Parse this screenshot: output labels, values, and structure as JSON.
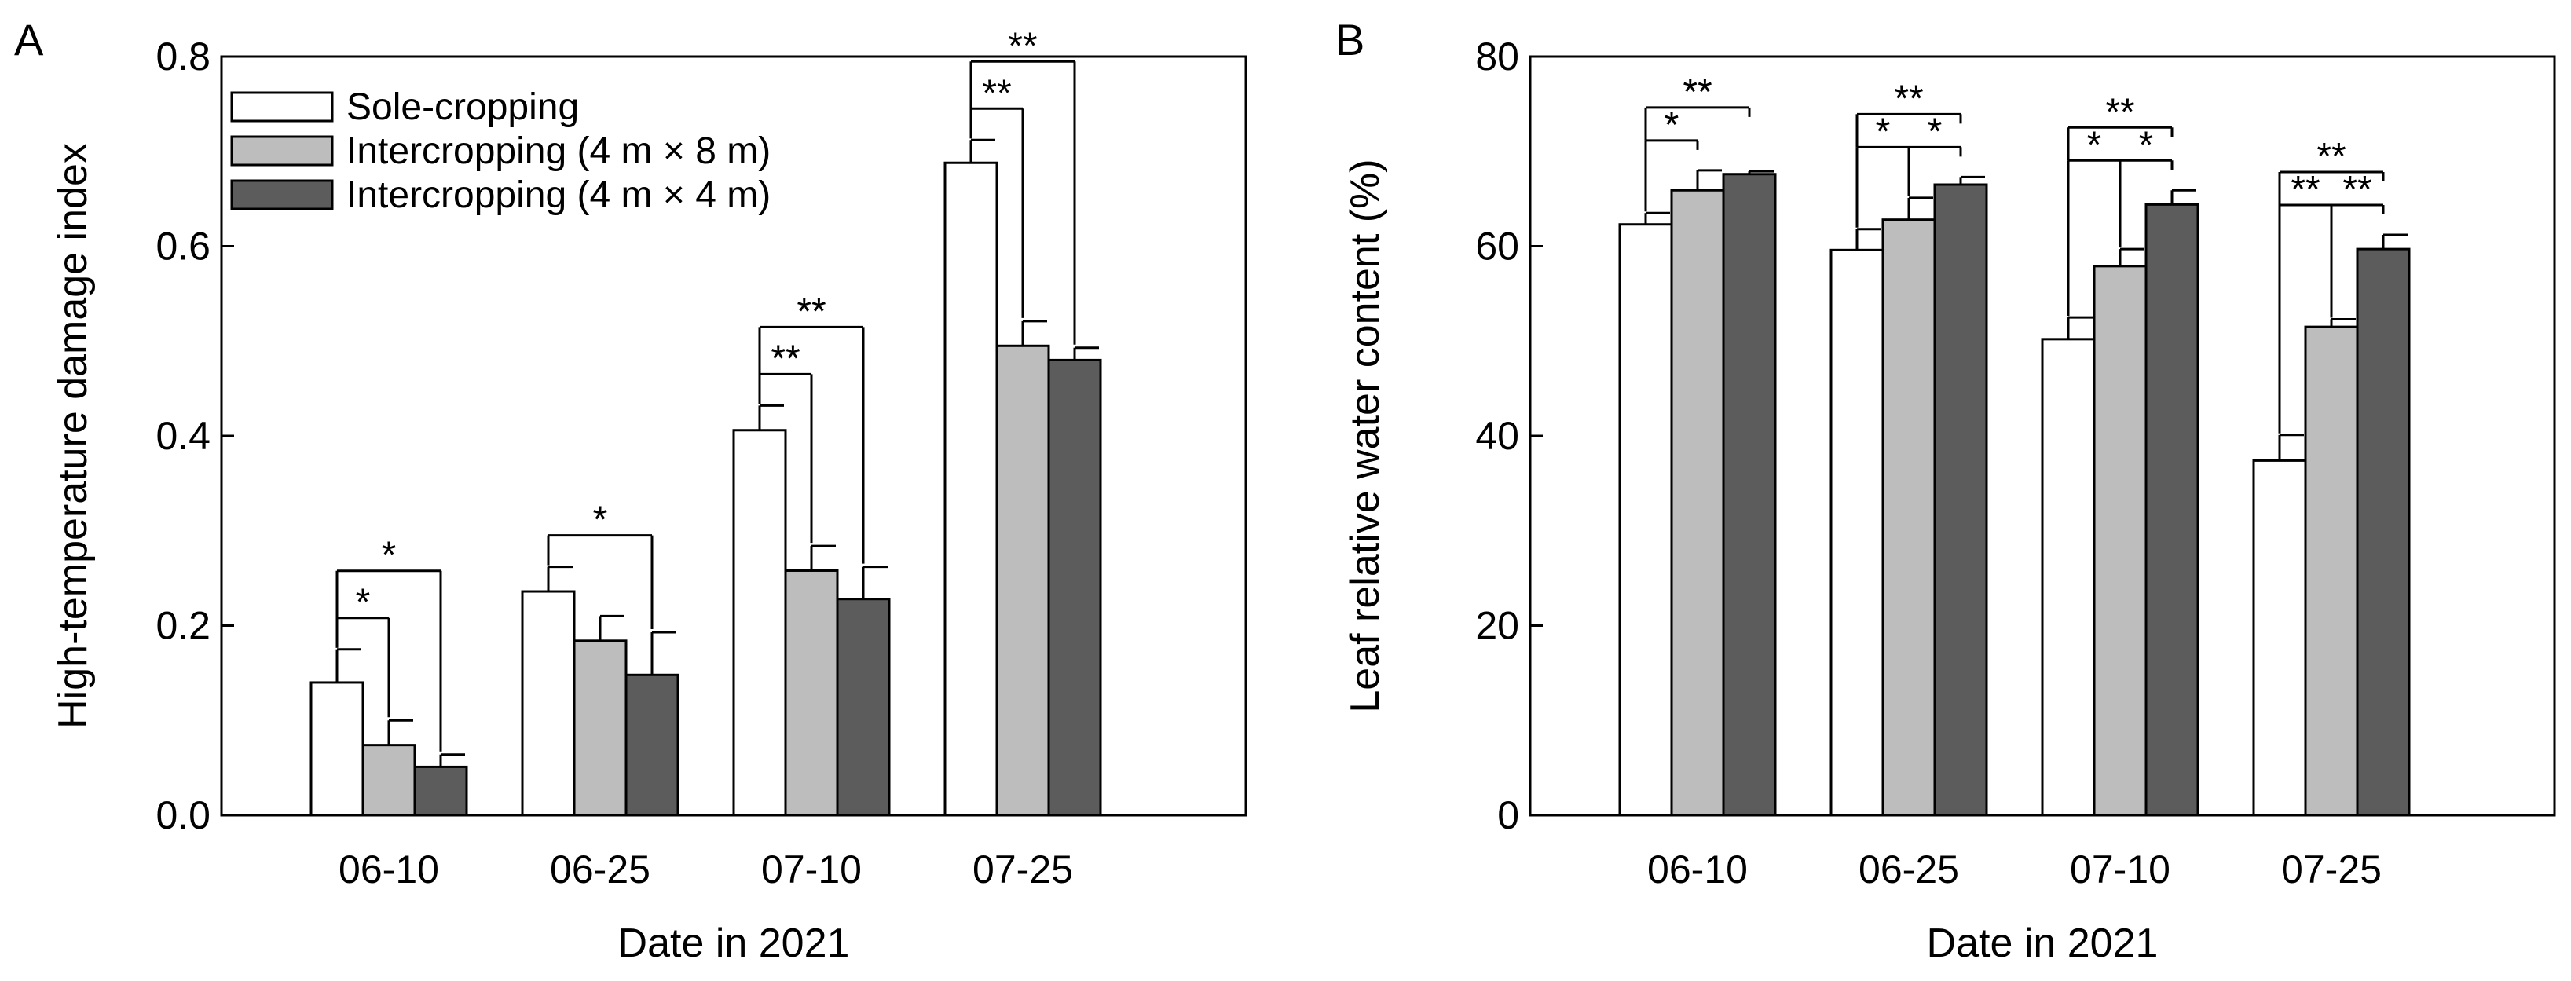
{
  "chart_data": [
    {
      "type": "bar",
      "panel": "A",
      "ylabel": "High-temperature damage index",
      "xlabel": "Date in 2021",
      "ylim": [
        0,
        0.8
      ],
      "yticks": [
        0,
        0.2,
        0.4,
        0.6,
        0.8
      ],
      "ytick_labels": [
        "0.0",
        "0.2",
        "0.4",
        "0.6",
        "0.8"
      ],
      "categories": [
        "06-10",
        "06-25",
        "07-10",
        "07-25"
      ],
      "legend_position": "top-left",
      "series": [
        {
          "name": "Sole-cropping",
          "color": "#ffffff",
          "values": [
            0.14,
            0.236,
            0.406,
            0.688
          ],
          "errors": [
            0.035,
            0.026,
            0.026,
            0.024
          ]
        },
        {
          "name": "Intercropping (4 m × 8 m)",
          "color": "#bdbdbd",
          "values": [
            0.074,
            0.184,
            0.258,
            0.495
          ],
          "errors": [
            0.026,
            0.026,
            0.026,
            0.026
          ]
        },
        {
          "name": "Intercropping (4 m × 4 m)",
          "color": "#5c5c5c",
          "values": [
            0.051,
            0.148,
            0.228,
            0.48
          ],
          "errors": [
            0.013,
            0.045,
            0.034,
            0.013
          ]
        }
      ],
      "significance": [
        {
          "category": 0,
          "from": 0,
          "to": 1,
          "label": "*",
          "level": 0
        },
        {
          "category": 0,
          "from": 0,
          "to": 2,
          "label": "*",
          "level": 1
        },
        {
          "category": 1,
          "from": 0,
          "to": 2,
          "label": "*",
          "level": 0
        },
        {
          "category": 2,
          "from": 0,
          "to": 1,
          "label": "**",
          "level": 0
        },
        {
          "category": 2,
          "from": 0,
          "to": 2,
          "label": "**",
          "level": 1
        },
        {
          "category": 3,
          "from": 0,
          "to": 1,
          "label": "**",
          "level": 0
        },
        {
          "category": 3,
          "from": 0,
          "to": 2,
          "label": "**",
          "level": 1
        }
      ]
    },
    {
      "type": "bar",
      "panel": "B",
      "ylabel": "Leaf relative water content (%)",
      "xlabel": "Date in 2021",
      "ylim": [
        0,
        80
      ],
      "yticks": [
        0,
        20,
        40,
        60,
        80
      ],
      "ytick_labels": [
        "0",
        "20",
        "40",
        "60",
        "80"
      ],
      "categories": [
        "06-10",
        "06-25",
        "07-10",
        "07-25"
      ],
      "series": [
        {
          "name": "Sole-cropping",
          "color": "#ffffff",
          "values": [
            62.3,
            59.6,
            50.2,
            37.4
          ],
          "errors": [
            1.2,
            2.2,
            2.3,
            2.7
          ]
        },
        {
          "name": "Intercropping (4 m × 8 m)",
          "color": "#bdbdbd",
          "values": [
            65.9,
            62.8,
            57.9,
            51.5
          ],
          "errors": [
            2.1,
            2.3,
            1.8,
            0.8
          ]
        },
        {
          "name": "Intercropping (4 m × 4 m)",
          "color": "#5c5c5c",
          "values": [
            67.6,
            66.5,
            64.4,
            59.7
          ],
          "errors": [
            0.3,
            0.8,
            1.5,
            1.5
          ]
        }
      ],
      "significance": [
        {
          "category": 0,
          "from": 0,
          "to": 1,
          "label": "*",
          "level": 0
        },
        {
          "category": 0,
          "from": 0,
          "to": 2,
          "label": "**",
          "level": 1
        },
        {
          "category": 1,
          "from": 0,
          "to": 1,
          "label": "*",
          "level": 0
        },
        {
          "category": 1,
          "from": 1,
          "to": 2,
          "label": "*",
          "level": 0
        },
        {
          "category": 1,
          "from": 0,
          "to": 2,
          "label": "**",
          "level": 1
        },
        {
          "category": 2,
          "from": 0,
          "to": 1,
          "label": "*",
          "level": 0
        },
        {
          "category": 2,
          "from": 1,
          "to": 2,
          "label": "*",
          "level": 0
        },
        {
          "category": 2,
          "from": 0,
          "to": 2,
          "label": "**",
          "level": 1
        },
        {
          "category": 3,
          "from": 0,
          "to": 1,
          "label": "**",
          "level": 0
        },
        {
          "category": 3,
          "from": 1,
          "to": 2,
          "label": "**",
          "level": 0
        },
        {
          "category": 3,
          "from": 0,
          "to": 2,
          "label": "**",
          "level": 1
        }
      ]
    }
  ]
}
